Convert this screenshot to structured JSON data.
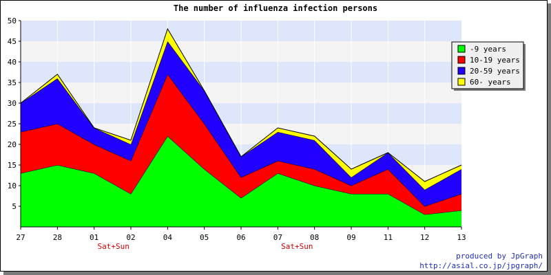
{
  "chart_data": {
    "type": "area",
    "stacked": true,
    "title": "The number of influenza infection persons",
    "categories": [
      "27",
      "28",
      "01",
      "02",
      "04",
      "05",
      "06",
      "07",
      "08",
      "09",
      "11",
      "12",
      "13"
    ],
    "annotations": [
      {
        "category": "01",
        "text": "Sat+Sun"
      },
      {
        "category": "07",
        "text": "Sat+Sun"
      }
    ],
    "ylim": [
      0,
      50
    ],
    "yticks": [
      5,
      10,
      15,
      20,
      25,
      30,
      35,
      40,
      45,
      50
    ],
    "grid": true,
    "legend_position": "top-right",
    "series": [
      {
        "name": "-9 years",
        "color": "#00ff00",
        "values": [
          13,
          15,
          13,
          8,
          22,
          14,
          7,
          13,
          10,
          8,
          8,
          3,
          4
        ]
      },
      {
        "name": "10-19 years",
        "color": "#ff0000",
        "values": [
          10,
          10,
          7,
          8,
          15,
          11,
          5,
          3,
          4,
          2,
          6,
          2,
          4
        ]
      },
      {
        "name": "20-59 years",
        "color": "#2200ff",
        "values": [
          7,
          11,
          4,
          4,
          8,
          8,
          5,
          7,
          7,
          2,
          4,
          4,
          6
        ]
      },
      {
        "name": "60- years",
        "color": "#ffff00",
        "values": [
          0,
          1,
          0,
          1,
          3,
          0,
          0,
          1,
          1,
          2,
          0,
          2,
          1
        ]
      }
    ]
  },
  "footer": {
    "line1": "produced by JpGraph",
    "line2": "http://asial.co.jp/jpgraph/"
  }
}
